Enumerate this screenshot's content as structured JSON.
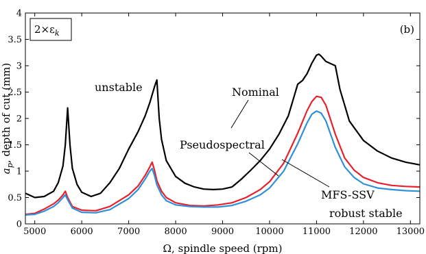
{
  "chart_data": {
    "type": "line",
    "xlabel": "Ω, spindle speed (rpm)",
    "ylabel": "a_p, depth of cut (mm)",
    "ylabel_main": "a",
    "ylabel_sub": "p",
    "ylabel_rest": ", depth of cut (mm)",
    "xlim": [
      4800,
      13200
    ],
    "ylim": [
      0,
      4
    ],
    "x_ticks": [
      5000,
      6000,
      7000,
      8000,
      9000,
      10000,
      11000,
      12000,
      13000
    ],
    "y_ticks": [
      0,
      0.5,
      1,
      1.5,
      2,
      2.5,
      3,
      3.5,
      4
    ],
    "x_tick_labels": [
      "5000",
      "6000",
      "7000",
      "8000",
      "9000",
      "10000",
      "11000",
      "12000",
      "13000"
    ],
    "y_tick_labels": [
      "0",
      "0.5",
      "1",
      "1.5",
      "2",
      "2.5",
      "3",
      "3.5",
      "4"
    ],
    "grid": false,
    "panel_label": "(b)",
    "box_label": "2×εk",
    "box_label_main": "2×ε",
    "box_label_sub": "k",
    "region_labels": [
      "unstable",
      "robust stable"
    ],
    "curve_labels": [
      "Nominal",
      "Pseudospectral",
      "MFS-SSV"
    ],
    "series": [
      {
        "name": "Nominal",
        "color": "#000000",
        "x": [
          4800,
          5000,
          5200,
          5400,
          5500,
          5600,
          5650,
          5700,
          5750,
          5800,
          5900,
          6000,
          6200,
          6400,
          6600,
          6800,
          7000,
          7200,
          7350,
          7450,
          7500,
          7550,
          7600,
          7650,
          7700,
          7800,
          8000,
          8200,
          8400,
          8600,
          8800,
          9000,
          9200,
          9400,
          9600,
          9800,
          10000,
          10200,
          10400,
          10600,
          10700,
          10800,
          10900,
          11000,
          11050,
          11100,
          11200,
          11300,
          11400,
          11500,
          11700,
          12000,
          12300,
          12600,
          12900,
          13200
        ],
        "y": [
          0.58,
          0.5,
          0.52,
          0.62,
          0.78,
          1.1,
          1.5,
          2.2,
          1.5,
          1.05,
          0.75,
          0.6,
          0.52,
          0.58,
          0.78,
          1.05,
          1.42,
          1.75,
          2.05,
          2.3,
          2.45,
          2.6,
          2.73,
          2.0,
          1.6,
          1.2,
          0.9,
          0.77,
          0.7,
          0.66,
          0.65,
          0.66,
          0.7,
          0.85,
          1.02,
          1.2,
          1.42,
          1.7,
          2.05,
          2.65,
          2.72,
          2.85,
          3.05,
          3.2,
          3.22,
          3.18,
          3.08,
          3.04,
          3.0,
          2.55,
          1.95,
          1.58,
          1.38,
          1.25,
          1.17,
          1.12
        ]
      },
      {
        "name": "Pseudospectral",
        "color": "#e8202a",
        "x": [
          4800,
          5000,
          5200,
          5400,
          5500,
          5600,
          5650,
          5700,
          5800,
          6000,
          6300,
          6600,
          7000,
          7200,
          7350,
          7450,
          7500,
          7550,
          7600,
          7700,
          7800,
          8000,
          8300,
          8600,
          8900,
          9200,
          9500,
          9800,
          10000,
          10300,
          10600,
          10800,
          10900,
          11000,
          11100,
          11200,
          11400,
          11600,
          11800,
          12000,
          12300,
          12600,
          12900,
          13200
        ],
        "y": [
          0.18,
          0.2,
          0.28,
          0.38,
          0.45,
          0.55,
          0.62,
          0.5,
          0.33,
          0.26,
          0.25,
          0.33,
          0.55,
          0.72,
          0.92,
          1.08,
          1.17,
          1.02,
          0.82,
          0.62,
          0.5,
          0.4,
          0.35,
          0.34,
          0.36,
          0.4,
          0.5,
          0.65,
          0.8,
          1.15,
          1.72,
          2.15,
          2.32,
          2.42,
          2.4,
          2.25,
          1.7,
          1.25,
          1.02,
          0.88,
          0.78,
          0.73,
          0.71,
          0.7
        ]
      },
      {
        "name": "MFS-SSV",
        "color": "#2f8fd8",
        "x": [
          4800,
          5000,
          5200,
          5400,
          5500,
          5600,
          5650,
          5700,
          5800,
          6000,
          6300,
          6600,
          7000,
          7200,
          7350,
          7450,
          7500,
          7550,
          7600,
          7700,
          7800,
          8000,
          8300,
          8600,
          8900,
          9200,
          9500,
          9800,
          10000,
          10300,
          10600,
          10800,
          10900,
          11000,
          11100,
          11200,
          11400,
          11600,
          11800,
          12000,
          12300,
          12600,
          12900,
          13200
        ],
        "y": [
          0.17,
          0.18,
          0.24,
          0.33,
          0.4,
          0.5,
          0.55,
          0.46,
          0.3,
          0.22,
          0.21,
          0.27,
          0.48,
          0.65,
          0.85,
          1.0,
          1.05,
          0.92,
          0.74,
          0.55,
          0.44,
          0.36,
          0.33,
          0.32,
          0.32,
          0.35,
          0.43,
          0.55,
          0.68,
          1.0,
          1.52,
          1.92,
          2.08,
          2.14,
          2.1,
          1.95,
          1.45,
          1.08,
          0.88,
          0.76,
          0.68,
          0.65,
          0.63,
          0.62
        ]
      }
    ]
  }
}
